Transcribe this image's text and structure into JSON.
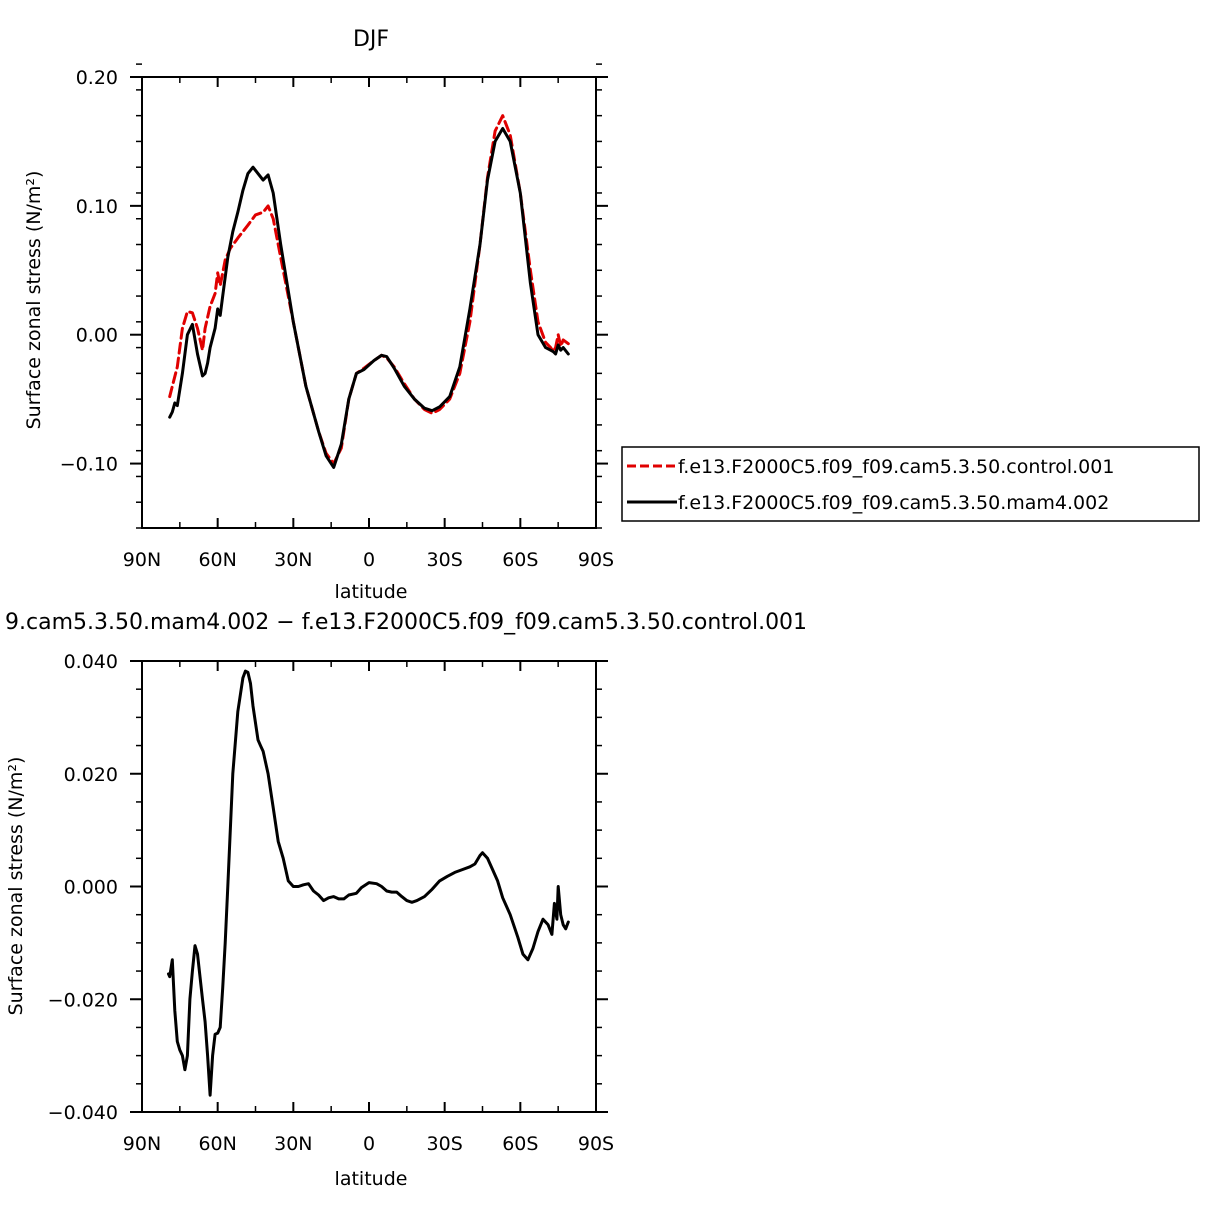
{
  "chart_data": [
    {
      "type": "line",
      "title": "DJF",
      "xlabel": "latitude",
      "ylabel": "Surface zonal stress (N/m²)",
      "xlim": [
        90,
        -90
      ],
      "ylim": [
        -0.15,
        0.2
      ],
      "xticks": [
        90,
        60,
        30,
        0,
        -30,
        -60,
        -90
      ],
      "xtick_labels": [
        "90N",
        "60N",
        "30N",
        "0",
        "30S",
        "60S",
        "90S"
      ],
      "yticks": [
        0.2,
        0.1,
        0.0,
        -0.1
      ],
      "ytick_labels": [
        "0.20",
        "0.10",
        "0.00",
        "−0.10"
      ],
      "legend_position": "right-outside",
      "series": [
        {
          "name": "f.e13.F2000C5.f09_f09.cam5.3.50.control.001",
          "color": "#e00000",
          "dash": "dashed",
          "points": [
            [
              -79,
              -0.007
            ],
            [
              -77,
              -0.004
            ],
            [
              -76,
              -0.009
            ],
            [
              -75,
              0.0
            ],
            [
              -74,
              -0.01
            ],
            [
              -73,
              -0.013
            ],
            [
              -72,
              -0.01
            ],
            [
              -70,
              -0.006
            ],
            [
              -67,
              0.01
            ],
            [
              -64,
              0.05
            ],
            [
              -60,
              0.11
            ],
            [
              -56,
              0.155
            ],
            [
              -53,
              0.17
            ],
            [
              -50,
              0.158
            ],
            [
              -47,
              0.122
            ],
            [
              -44,
              0.07
            ],
            [
              -40,
              0.01
            ],
            [
              -36,
              -0.03
            ],
            [
              -32,
              -0.05
            ],
            [
              -28,
              -0.058
            ],
            [
              -25,
              -0.061
            ],
            [
              -22,
              -0.058
            ],
            [
              -18,
              -0.05
            ],
            [
              -14,
              -0.038
            ],
            [
              -10,
              -0.025
            ],
            [
              -7,
              -0.018
            ],
            [
              -5,
              -0.016
            ],
            [
              -2,
              -0.02
            ],
            [
              2,
              -0.026
            ],
            [
              5,
              -0.03
            ],
            [
              8,
              -0.05
            ],
            [
              11,
              -0.088
            ],
            [
              14,
              -0.1
            ],
            [
              17,
              -0.092
            ],
            [
              20,
              -0.075
            ],
            [
              25,
              -0.04
            ],
            [
              30,
              0.01
            ],
            [
              35,
              0.06
            ],
            [
              38,
              0.09
            ],
            [
              40,
              0.1
            ],
            [
              42,
              0.095
            ],
            [
              45,
              0.093
            ],
            [
              48,
              0.085
            ],
            [
              52,
              0.075
            ],
            [
              55,
              0.067
            ],
            [
              57,
              0.058
            ],
            [
              59,
              0.038
            ],
            [
              60,
              0.048
            ],
            [
              61,
              0.032
            ],
            [
              63,
              0.022
            ],
            [
              65,
              0.005
            ],
            [
              66,
              -0.012
            ],
            [
              68,
              0.005
            ],
            [
              70,
              0.017
            ],
            [
              72,
              0.018
            ],
            [
              74,
              0.005
            ],
            [
              76,
              -0.025
            ],
            [
              78,
              -0.04
            ],
            [
              79,
              -0.048
            ]
          ]
        },
        {
          "name": "f.e13.F2000C5.f09_f09.cam5.3.50.mam4.002",
          "color": "#000000",
          "dash": "solid",
          "points": [
            [
              -79,
              -0.015
            ],
            [
              -77,
              -0.01
            ],
            [
              -76,
              -0.012
            ],
            [
              -75,
              -0.008
            ],
            [
              -74,
              -0.015
            ],
            [
              -73,
              -0.013
            ],
            [
              -72,
              -0.012
            ],
            [
              -70,
              -0.01
            ],
            [
              -67,
              0.0
            ],
            [
              -64,
              0.04
            ],
            [
              -60,
              0.11
            ],
            [
              -56,
              0.15
            ],
            [
              -53,
              0.16
            ],
            [
              -50,
              0.15
            ],
            [
              -47,
              0.12
            ],
            [
              -44,
              0.07
            ],
            [
              -40,
              0.02
            ],
            [
              -36,
              -0.025
            ],
            [
              -32,
              -0.048
            ],
            [
              -28,
              -0.056
            ],
            [
              -25,
              -0.059
            ],
            [
              -22,
              -0.057
            ],
            [
              -18,
              -0.05
            ],
            [
              -14,
              -0.04
            ],
            [
              -10,
              -0.026
            ],
            [
              -7,
              -0.017
            ],
            [
              -5,
              -0.016
            ],
            [
              -2,
              -0.02
            ],
            [
              2,
              -0.027
            ],
            [
              5,
              -0.03
            ],
            [
              8,
              -0.05
            ],
            [
              11,
              -0.085
            ],
            [
              14,
              -0.103
            ],
            [
              17,
              -0.094
            ],
            [
              20,
              -0.075
            ],
            [
              25,
              -0.04
            ],
            [
              30,
              0.01
            ],
            [
              35,
              0.07
            ],
            [
              38,
              0.11
            ],
            [
              40,
              0.124
            ],
            [
              42,
              0.12
            ],
            [
              44,
              0.125
            ],
            [
              46,
              0.13
            ],
            [
              48,
              0.125
            ],
            [
              50,
              0.112
            ],
            [
              52,
              0.095
            ],
            [
              54,
              0.08
            ],
            [
              56,
              0.06
            ],
            [
              58,
              0.03
            ],
            [
              59,
              0.015
            ],
            [
              60,
              0.02
            ],
            [
              61,
              0.005
            ],
            [
              63,
              -0.01
            ],
            [
              64,
              -0.022
            ],
            [
              65,
              -0.03
            ],
            [
              66,
              -0.032
            ],
            [
              68,
              -0.015
            ],
            [
              70,
              0.008
            ],
            [
              72,
              0.0
            ],
            [
              74,
              -0.03
            ],
            [
              76,
              -0.055
            ],
            [
              77,
              -0.053
            ],
            [
              78,
              -0.06
            ],
            [
              79,
              -0.064
            ]
          ]
        }
      ]
    },
    {
      "type": "line",
      "title": "9.cam5.3.50.mam4.002 − f.e13.F2000C5.f09_f09.cam5.3.50.control.001",
      "xlabel": "latitude",
      "ylabel": "Surface zonal stress (N/m²)",
      "xlim": [
        90,
        -90
      ],
      "ylim": [
        -0.04,
        0.04
      ],
      "xticks": [
        90,
        60,
        30,
        0,
        -30,
        -60,
        -90
      ],
      "xtick_labels": [
        "90N",
        "60N",
        "30N",
        "0",
        "30S",
        "60S",
        "90S"
      ],
      "yticks": [
        0.04,
        0.02,
        0.0,
        -0.02,
        -0.04
      ],
      "ytick_labels": [
        "0.040",
        "0.020",
        "0.000",
        "−0.020",
        "−0.040"
      ],
      "series": [
        {
          "color": "#000000",
          "dash": "solid",
          "points": [
            [
              -79,
              -0.0063
            ],
            [
              -78,
              -0.0075
            ],
            [
              -77,
              -0.0068
            ],
            [
              -76,
              -0.005
            ],
            [
              -75,
              0.0
            ],
            [
              -74.5,
              -0.0058
            ],
            [
              -73.5,
              -0.003
            ],
            [
              -72.5,
              -0.0085
            ],
            [
              -71,
              -0.0068
            ],
            [
              -69,
              -0.0058
            ],
            [
              -67,
              -0.008
            ],
            [
              -65,
              -0.011
            ],
            [
              -63,
              -0.013
            ],
            [
              -61,
              -0.012
            ],
            [
              -59,
              -0.009
            ],
            [
              -56,
              -0.005
            ],
            [
              -53,
              -0.002
            ],
            [
              -51,
              0.001
            ],
            [
              -49,
              0.003
            ],
            [
              -47,
              0.005
            ],
            [
              -45,
              0.006
            ],
            [
              -44,
              0.0055
            ],
            [
              -42,
              0.004
            ],
            [
              -40,
              0.0035
            ],
            [
              -37,
              0.003
            ],
            [
              -34,
              0.0025
            ],
            [
              -31,
              0.0018
            ],
            [
              -28,
              0.001
            ],
            [
              -25,
              -0.0005
            ],
            [
              -22,
              -0.0018
            ],
            [
              -19,
              -0.0025
            ],
            [
              -17,
              -0.0028
            ],
            [
              -15,
              -0.0025
            ],
            [
              -13,
              -0.0018
            ],
            [
              -11,
              -0.001
            ],
            [
              -9,
              -0.001
            ],
            [
              -7,
              -0.0008
            ],
            [
              -5,
              0.0
            ],
            [
              -3,
              0.0005
            ],
            [
              0,
              0.0007
            ],
            [
              3,
              -0.0002
            ],
            [
              5,
              -0.0012
            ],
            [
              8,
              -0.0015
            ],
            [
              10,
              -0.0022
            ],
            [
              12,
              -0.0022
            ],
            [
              14,
              -0.0018
            ],
            [
              16,
              -0.002
            ],
            [
              18,
              -0.0025
            ],
            [
              20,
              -0.0015
            ],
            [
              22,
              -0.0008
            ],
            [
              24,
              0.0005
            ],
            [
              26,
              0.0003
            ],
            [
              28,
              0.0
            ],
            [
              30,
              0.0
            ],
            [
              32,
              0.001
            ],
            [
              34,
              0.005
            ],
            [
              36,
              0.008
            ],
            [
              38,
              0.014
            ],
            [
              40,
              0.02
            ],
            [
              42,
              0.024
            ],
            [
              43,
              0.025
            ],
            [
              44,
              0.026
            ],
            [
              46,
              0.032
            ],
            [
              47,
              0.036
            ],
            [
              48,
              0.038
            ],
            [
              49,
              0.0382
            ],
            [
              50,
              0.037
            ],
            [
              52,
              0.031
            ],
            [
              54,
              0.02
            ],
            [
              55,
              0.01
            ],
            [
              56,
              0.0
            ],
            [
              57,
              -0.01
            ],
            [
              58,
              -0.018
            ],
            [
              59,
              -0.025
            ],
            [
              60,
              -0.026
            ],
            [
              61,
              -0.0262
            ],
            [
              62,
              -0.03
            ],
            [
              63,
              -0.037
            ],
            [
              64,
              -0.03
            ],
            [
              65,
              -0.024
            ],
            [
              66,
              -0.02
            ],
            [
              68,
              -0.012
            ],
            [
              69,
              -0.0105
            ],
            [
              70,
              -0.015
            ],
            [
              71,
              -0.02
            ],
            [
              72,
              -0.03
            ],
            [
              73,
              -0.0325
            ],
            [
              74,
              -0.03
            ],
            [
              75,
              -0.029
            ],
            [
              76,
              -0.0275
            ],
            [
              77,
              -0.022
            ],
            [
              78,
              -0.013
            ],
            [
              79,
              -0.016
            ],
            [
              79.5,
              -0.0155
            ]
          ]
        }
      ]
    }
  ]
}
